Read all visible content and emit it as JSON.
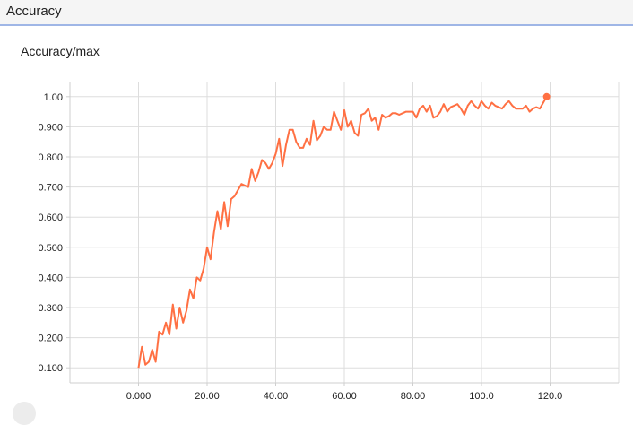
{
  "section": {
    "title": "Accuracy"
  },
  "chart_data": {
    "type": "line",
    "title": "Accuracy/max",
    "xlabel": "",
    "ylabel": "",
    "xlim": [
      -20,
      140
    ],
    "ylim": [
      0.05,
      1.05
    ],
    "xticks": [
      {
        "v": 0,
        "label": "0.000"
      },
      {
        "v": 20,
        "label": "20.00"
      },
      {
        "v": 40,
        "label": "40.00"
      },
      {
        "v": 60,
        "label": "60.00"
      },
      {
        "v": 80,
        "label": "80.00"
      },
      {
        "v": 100,
        "label": "100.0"
      },
      {
        "v": 120,
        "label": "120.0"
      }
    ],
    "yticks": [
      {
        "v": 0.1,
        "label": "0.100"
      },
      {
        "v": 0.2,
        "label": "0.200"
      },
      {
        "v": 0.3,
        "label": "0.300"
      },
      {
        "v": 0.4,
        "label": "0.400"
      },
      {
        "v": 0.5,
        "label": "0.500"
      },
      {
        "v": 0.6,
        "label": "0.600"
      },
      {
        "v": 0.7,
        "label": "0.700"
      },
      {
        "v": 0.8,
        "label": "0.800"
      },
      {
        "v": 0.9,
        "label": "0.900"
      },
      {
        "v": 1.0,
        "label": "1.00"
      }
    ],
    "grid": true,
    "color": "#ff7043",
    "series": [
      {
        "x": [
          0,
          1,
          2,
          3,
          4,
          5,
          6,
          7,
          8,
          9,
          10,
          11,
          12,
          13,
          14,
          15,
          16,
          17,
          18,
          19,
          20,
          21,
          22,
          23,
          24,
          25,
          26,
          27,
          28,
          29,
          30,
          31,
          32,
          33,
          34,
          35,
          36,
          37,
          38,
          39,
          40,
          41,
          42,
          43,
          44,
          45,
          46,
          47,
          48,
          49,
          50,
          51,
          52,
          53,
          54,
          55,
          56,
          57,
          58,
          59,
          60,
          61,
          62,
          63,
          64,
          65,
          66,
          67,
          68,
          69,
          70,
          71,
          72,
          73,
          74,
          75,
          76,
          77,
          78,
          79,
          80,
          81,
          82,
          83,
          84,
          85,
          86,
          87,
          88,
          89,
          90,
          91,
          92,
          93,
          94,
          95,
          96,
          97,
          98,
          99,
          100,
          101,
          102,
          103,
          104,
          105,
          106,
          107,
          108,
          109,
          110,
          111,
          112,
          113,
          114,
          115,
          116,
          117,
          118,
          119
        ],
        "y": [
          0.1,
          0.17,
          0.11,
          0.12,
          0.16,
          0.12,
          0.22,
          0.21,
          0.25,
          0.21,
          0.31,
          0.23,
          0.3,
          0.25,
          0.29,
          0.36,
          0.33,
          0.4,
          0.39,
          0.43,
          0.5,
          0.46,
          0.55,
          0.62,
          0.56,
          0.65,
          0.57,
          0.66,
          0.67,
          0.69,
          0.71,
          0.705,
          0.7,
          0.76,
          0.72,
          0.75,
          0.79,
          0.78,
          0.76,
          0.78,
          0.81,
          0.86,
          0.77,
          0.84,
          0.89,
          0.89,
          0.85,
          0.83,
          0.83,
          0.86,
          0.84,
          0.92,
          0.855,
          0.87,
          0.9,
          0.89,
          0.89,
          0.95,
          0.92,
          0.89,
          0.955,
          0.9,
          0.92,
          0.88,
          0.87,
          0.94,
          0.945,
          0.96,
          0.92,
          0.93,
          0.89,
          0.94,
          0.93,
          0.935,
          0.945,
          0.945,
          0.94,
          0.945,
          0.95,
          0.95,
          0.95,
          0.93,
          0.96,
          0.97,
          0.95,
          0.97,
          0.93,
          0.935,
          0.95,
          0.975,
          0.95,
          0.965,
          0.97,
          0.975,
          0.96,
          0.94,
          0.97,
          0.985,
          0.97,
          0.96,
          0.985,
          0.97,
          0.96,
          0.98,
          0.97,
          0.965,
          0.96,
          0.975,
          0.985,
          0.97,
          0.96,
          0.96,
          0.96,
          0.97,
          0.95,
          0.96,
          0.965,
          0.96,
          0.98,
          1.0
        ]
      }
    ]
  }
}
